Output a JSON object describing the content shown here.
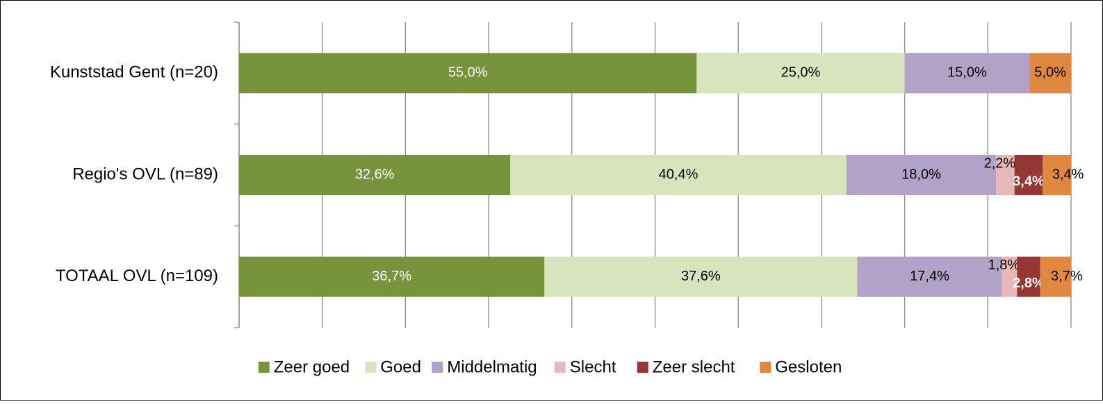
{
  "chart_data": {
    "type": "stacked_barh",
    "categories": [
      "Kunststad Gent (n=20)",
      "Regio's OVL (n=89)",
      "TOTAAL OVL (n=109)"
    ],
    "series": [
      {
        "name": "Zeer goed",
        "color": "#77933c",
        "values": [
          55.0,
          32.6,
          36.7
        ],
        "value_labels": [
          "55,0%",
          "32,6%",
          "36,7%"
        ]
      },
      {
        "name": "Goed",
        "color": "#d7e4bd",
        "values": [
          25.0,
          40.4,
          37.6
        ],
        "value_labels": [
          "25,0%",
          "40,4%",
          "37,6%"
        ]
      },
      {
        "name": "Middelmatig",
        "color": "#b3a2c7",
        "values": [
          15.0,
          18.0,
          17.4
        ],
        "value_labels": [
          "15,0%",
          "18,0%",
          "17,4%"
        ]
      },
      {
        "name": "Slecht",
        "color": "#e6b9b8",
        "values": [
          0,
          2.2,
          1.8
        ],
        "value_labels": [
          null,
          "2,2%",
          "1,8%"
        ]
      },
      {
        "name": "Zeer slecht",
        "color": "#953735",
        "values": [
          0,
          3.4,
          2.8
        ],
        "value_labels": [
          null,
          "3,4%",
          "2,8%"
        ]
      },
      {
        "name": "Gesloten",
        "color": "#e0883f",
        "values": [
          5.0,
          3.4,
          3.7
        ],
        "value_labels": [
          "5,0%",
          "3,4%",
          "3,7%"
        ]
      }
    ],
    "xlim": [
      0,
      100
    ],
    "xticks": [
      0,
      10,
      20,
      30,
      40,
      50,
      60,
      70,
      80,
      90,
      100
    ],
    "grid": true,
    "legend": "bottom"
  }
}
